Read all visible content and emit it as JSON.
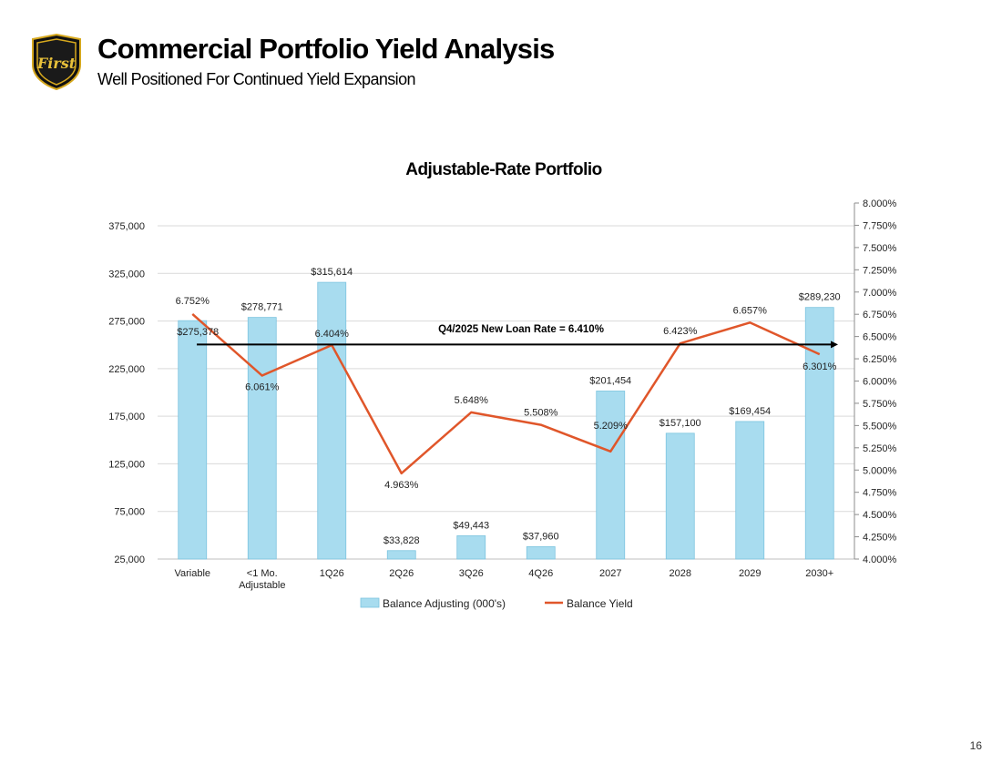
{
  "header": {
    "title": "Commercial Portfolio Yield Analysis",
    "subtitle": "Well Positioned For Continued Yield Expansion",
    "logo_text": "First"
  },
  "page_number": "16",
  "chart_data": {
    "type": "bar",
    "title": "Adjustable-Rate Portfolio",
    "categories": [
      "Variable",
      "<1 Mo. Adjustable",
      "1Q26",
      "2Q26",
      "3Q26",
      "4Q26",
      "2027",
      "2028",
      "2029",
      "2030+"
    ],
    "series": [
      {
        "name": "Balance Adjusting (000's)",
        "type": "bar",
        "axis": "left",
        "color": "#a8dcef",
        "values": [
          275378,
          278771,
          315614,
          33828,
          49443,
          37960,
          201454,
          157100,
          169454,
          289230
        ],
        "labels": [
          "$275,378",
          "$278,771",
          "$315,614",
          "$33,828",
          "$49,443",
          "$37,960",
          "$201,454",
          "$157,100",
          "$169,454",
          "$289,230"
        ]
      },
      {
        "name": "Balance Yield",
        "type": "line",
        "axis": "right",
        "color": "#e0562a",
        "values": [
          6.752,
          6.061,
          6.404,
          4.963,
          5.648,
          5.508,
          5.209,
          6.423,
          6.657,
          6.301
        ],
        "labels": [
          "6.752%",
          "6.061%",
          "6.404%",
          "4.963%",
          "5.648%",
          "5.508%",
          "5.209%",
          "6.423%",
          "6.657%",
          "6.301%"
        ]
      }
    ],
    "left_axis": {
      "min": 25000,
      "max": 375000,
      "ticks": [
        25000,
        75000,
        125000,
        175000,
        225000,
        275000,
        325000,
        375000
      ],
      "tick_labels": [
        "25,000",
        "75,000",
        "125,000",
        "175,000",
        "225,000",
        "275,000",
        "325,000",
        "375,000"
      ]
    },
    "right_axis": {
      "min": 4.0,
      "max": 8.0,
      "ticks": [
        4.0,
        4.25,
        4.5,
        4.75,
        5.0,
        5.25,
        5.5,
        5.75,
        6.0,
        6.25,
        6.5,
        6.75,
        7.0,
        7.25,
        7.5,
        7.75,
        8.0
      ],
      "tick_labels": [
        "4.000%",
        "4.250%",
        "4.500%",
        "4.750%",
        "5.000%",
        "5.250%",
        "5.500%",
        "5.750%",
        "6.000%",
        "6.250%",
        "6.500%",
        "6.750%",
        "7.000%",
        "7.250%",
        "7.500%",
        "7.750%",
        "8.000%"
      ]
    },
    "reference_line": {
      "label": "Q4/2025 New Loan Rate = 6.410%",
      "value": 6.41,
      "color": "#000000"
    },
    "legend": [
      "Balance Adjusting (000's)",
      "Balance Yield"
    ],
    "legend_position": "bottom",
    "grid": true
  }
}
